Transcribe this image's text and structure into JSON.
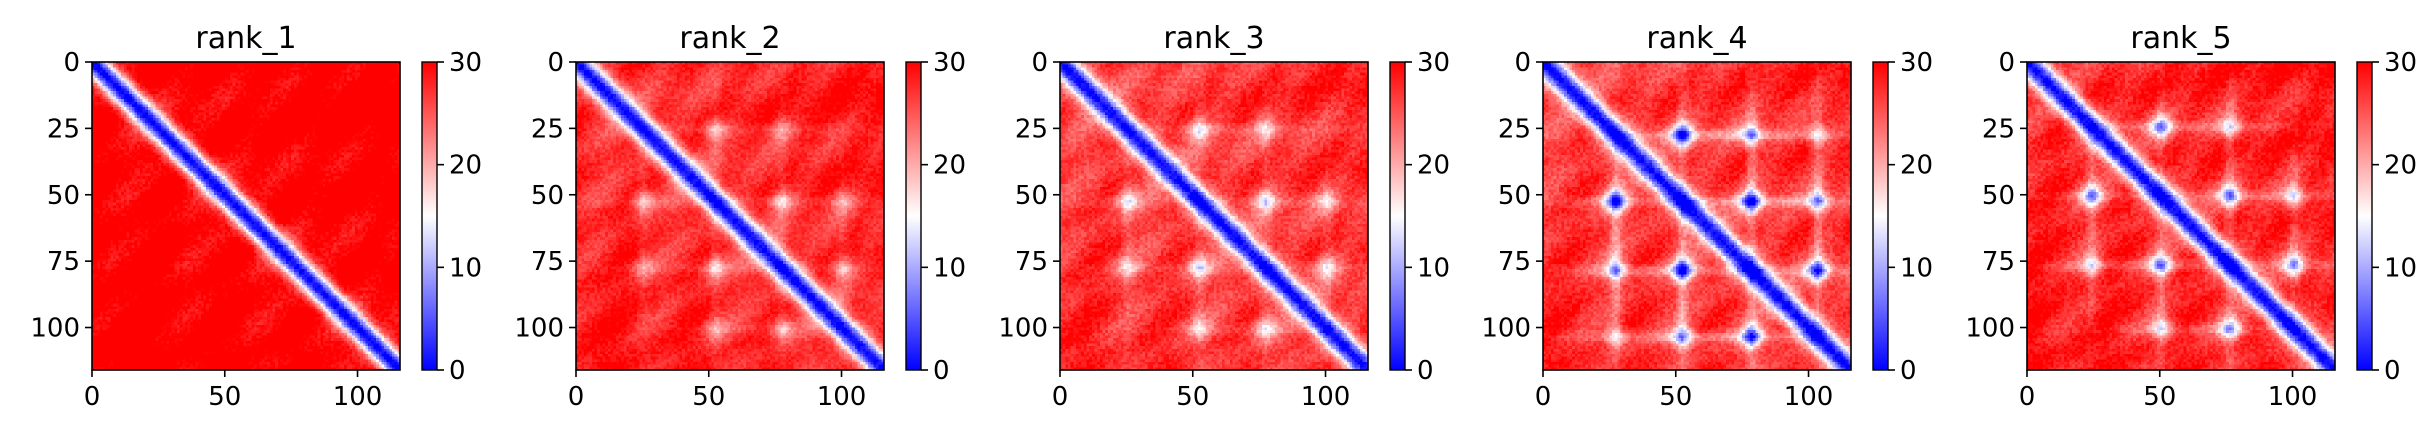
{
  "chart_data": [
    {
      "type": "heatmap",
      "title": "rank_1",
      "matrix_size": 116,
      "xticks": [
        0,
        50,
        100
      ],
      "yticks": [
        0,
        25,
        50,
        75,
        100
      ],
      "xlim": [
        0,
        116
      ],
      "ylim": [
        116,
        0
      ],
      "colorbar": {
        "ticks": [
          0,
          10,
          20,
          30
        ],
        "range": [
          0,
          30
        ],
        "colormap": "bwr"
      },
      "pattern": {
        "diagonal_value": 0,
        "background_value": 30,
        "band_width": 4.5,
        "gradient": 1.4,
        "noise": 3,
        "blobs": []
      }
    },
    {
      "type": "heatmap",
      "title": "rank_2",
      "matrix_size": 116,
      "xticks": [
        0,
        50,
        100
      ],
      "yticks": [
        0,
        25,
        50,
        75,
        100
      ],
      "xlim": [
        0,
        116
      ],
      "ylim": [
        116,
        0
      ],
      "colorbar": {
        "ticks": [
          0,
          10,
          20,
          30
        ],
        "range": [
          0,
          30
        ],
        "colormap": "bwr"
      },
      "pattern": {
        "diagonal_value": 0,
        "background_value": 27,
        "band_width": 4.5,
        "gradient": 1.2,
        "noise": 3,
        "blobs": [
          {
            "i": 25,
            "j": 52,
            "depth": 8
          },
          {
            "i": 52,
            "j": 25,
            "depth": 8
          },
          {
            "i": 52,
            "j": 77,
            "depth": 8
          },
          {
            "i": 77,
            "j": 52,
            "depth": 8
          },
          {
            "i": 77,
            "j": 100,
            "depth": 7
          },
          {
            "i": 100,
            "j": 77,
            "depth": 7
          },
          {
            "i": 25,
            "j": 77,
            "depth": 5
          },
          {
            "i": 77,
            "j": 25,
            "depth": 5
          },
          {
            "i": 52,
            "j": 100,
            "depth": 5
          },
          {
            "i": 100,
            "j": 52,
            "depth": 5
          }
        ]
      }
    },
    {
      "type": "heatmap",
      "title": "rank_3",
      "matrix_size": 116,
      "xticks": [
        0,
        50,
        100
      ],
      "yticks": [
        0,
        25,
        50,
        75,
        100
      ],
      "xlim": [
        0,
        116
      ],
      "ylim": [
        116,
        0
      ],
      "colorbar": {
        "ticks": [
          0,
          10,
          20,
          30
        ],
        "range": [
          0,
          30
        ],
        "colormap": "bwr"
      },
      "pattern": {
        "diagonal_value": 0,
        "background_value": 26,
        "band_width": 4.5,
        "gradient": 1.1,
        "noise": 3.5,
        "blobs": [
          {
            "i": 25,
            "j": 52,
            "depth": 9
          },
          {
            "i": 52,
            "j": 25,
            "depth": 9
          },
          {
            "i": 52,
            "j": 77,
            "depth": 9
          },
          {
            "i": 77,
            "j": 52,
            "depth": 9
          },
          {
            "i": 77,
            "j": 100,
            "depth": 8
          },
          {
            "i": 100,
            "j": 77,
            "depth": 8
          },
          {
            "i": 25,
            "j": 77,
            "depth": 6
          },
          {
            "i": 77,
            "j": 25,
            "depth": 6
          },
          {
            "i": 52,
            "j": 100,
            "depth": 6
          },
          {
            "i": 100,
            "j": 52,
            "depth": 6
          }
        ]
      }
    },
    {
      "type": "heatmap",
      "title": "rank_4",
      "matrix_size": 116,
      "xticks": [
        0,
        50,
        100
      ],
      "yticks": [
        0,
        25,
        50,
        75,
        100
      ],
      "xlim": [
        0,
        116
      ],
      "ylim": [
        116,
        0
      ],
      "colorbar": {
        "ticks": [
          0,
          10,
          20,
          30
        ],
        "range": [
          0,
          30
        ],
        "colormap": "bwr"
      },
      "pattern": {
        "diagonal_value": 0,
        "background_value": 26,
        "band_width": 4.5,
        "gradient": 0.9,
        "noise": 3.5,
        "blobs": [
          {
            "i": 27,
            "j": 52,
            "depth": 19
          },
          {
            "i": 52,
            "j": 27,
            "depth": 19
          },
          {
            "i": 52,
            "j": 78,
            "depth": 19
          },
          {
            "i": 78,
            "j": 52,
            "depth": 19
          },
          {
            "i": 78,
            "j": 103,
            "depth": 18
          },
          {
            "i": 103,
            "j": 78,
            "depth": 18
          },
          {
            "i": 27,
            "j": 78,
            "depth": 13
          },
          {
            "i": 78,
            "j": 27,
            "depth": 13
          },
          {
            "i": 52,
            "j": 103,
            "depth": 13
          },
          {
            "i": 103,
            "j": 52,
            "depth": 13
          },
          {
            "i": 27,
            "j": 103,
            "depth": 9
          },
          {
            "i": 103,
            "j": 27,
            "depth": 9
          }
        ]
      }
    },
    {
      "type": "heatmap",
      "title": "rank_5",
      "matrix_size": 116,
      "xticks": [
        0,
        50,
        100
      ],
      "yticks": [
        0,
        25,
        50,
        75,
        100
      ],
      "xlim": [
        0,
        116
      ],
      "ylim": [
        116,
        0
      ],
      "colorbar": {
        "ticks": [
          0,
          10,
          20,
          30
        ],
        "range": [
          0,
          30
        ],
        "colormap": "bwr"
      },
      "pattern": {
        "diagonal_value": 0,
        "background_value": 27,
        "band_width": 4.5,
        "gradient": 1.0,
        "noise": 3.5,
        "blobs": [
          {
            "i": 24,
            "j": 50,
            "depth": 14
          },
          {
            "i": 50,
            "j": 24,
            "depth": 14
          },
          {
            "i": 50,
            "j": 76,
            "depth": 14
          },
          {
            "i": 76,
            "j": 50,
            "depth": 14
          },
          {
            "i": 76,
            "j": 100,
            "depth": 13
          },
          {
            "i": 100,
            "j": 76,
            "depth": 13
          },
          {
            "i": 24,
            "j": 76,
            "depth": 10
          },
          {
            "i": 76,
            "j": 24,
            "depth": 10
          },
          {
            "i": 50,
            "j": 100,
            "depth": 10
          },
          {
            "i": 100,
            "j": 50,
            "depth": 10
          }
        ]
      }
    }
  ]
}
